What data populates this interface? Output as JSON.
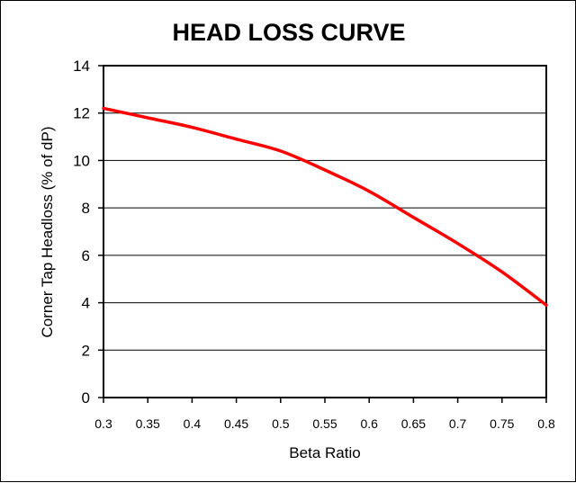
{
  "chart_data": {
    "type": "line",
    "title": "HEAD LOSS CURVE",
    "xlabel": "Beta Ratio",
    "ylabel": "Corner Tap Headloss (% of dP)",
    "xlim": [
      0.3,
      0.8
    ],
    "ylim": [
      0,
      14
    ],
    "x_ticks": [
      "0.3",
      "0.35",
      "0.4",
      "0.45",
      "0.5",
      "0.55",
      "0.6",
      "0.65",
      "0.7",
      "0.75",
      "0.8"
    ],
    "y_ticks": [
      "0",
      "2",
      "4",
      "6",
      "8",
      "10",
      "12",
      "14"
    ],
    "grid": "horizontal",
    "series": [
      {
        "color": "#ff0000",
        "x": [
          0.3,
          0.35,
          0.4,
          0.45,
          0.5,
          0.55,
          0.6,
          0.65,
          0.7,
          0.75,
          0.8
        ],
        "y": [
          12.2,
          11.8,
          11.4,
          10.9,
          10.4,
          9.6,
          8.7,
          7.6,
          6.5,
          5.3,
          3.9
        ]
      }
    ]
  }
}
